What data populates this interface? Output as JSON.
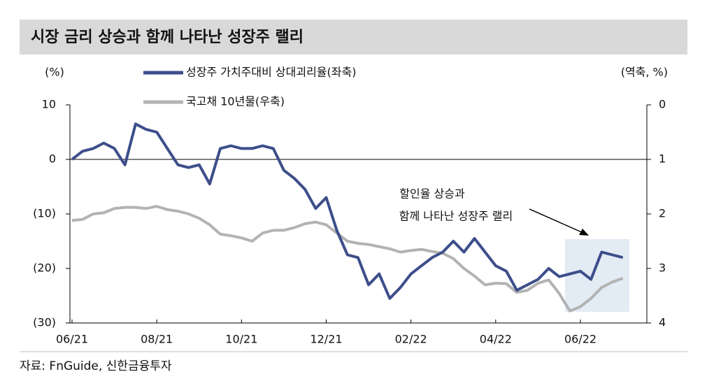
{
  "chart_data": {
    "type": "line",
    "title": "시장 금리 상승과 함께 나타난 성장주 랠리",
    "y_label": "(%)",
    "y2_label": "(역축, %)",
    "source": "자료: FnGuide, 신한금융투자",
    "annotation": [
      "할인율 상승과",
      "함께 나타난 성장주 랠리"
    ],
    "categories": [
      "06/21",
      null,
      null,
      null,
      null,
      null,
      null,
      null,
      "08/21",
      null,
      null,
      null,
      null,
      null,
      null,
      null,
      "10/21",
      null,
      null,
      null,
      null,
      null,
      null,
      null,
      "12/21",
      null,
      null,
      null,
      null,
      null,
      null,
      null,
      "02/22",
      null,
      null,
      null,
      null,
      null,
      null,
      null,
      "04/22",
      null,
      null,
      null,
      null,
      null,
      null,
      null,
      "06/22",
      null,
      null,
      null,
      null
    ],
    "series": [
      {
        "name": "성장주 가치주대비 상대괴리율(좌축)",
        "color": "#3d4e8a",
        "values": [
          0,
          1.5,
          2,
          3,
          2,
          -1,
          6.5,
          5.5,
          5,
          2,
          -1,
          -1.5,
          -1,
          -4.5,
          2,
          2.5,
          2,
          2,
          2.5,
          2,
          -2,
          -3.5,
          -5.5,
          -9,
          -7,
          -13,
          -17.5,
          -18,
          -23,
          -21,
          -25.5,
          -23.5,
          -21,
          -19.5,
          -18,
          -17,
          -15,
          -17,
          -14.5,
          -17,
          -19.5,
          -20.5,
          -24,
          -23,
          -22,
          -20,
          -21.5,
          -21,
          -20.5,
          -22,
          -17,
          -17.5,
          -18
        ]
      },
      {
        "name": "국고채 10년물(우축)",
        "color": "#b3b3b3",
        "axis": "y2",
        "values": [
          2.12,
          2.1,
          2.0,
          1.98,
          1.9,
          1.88,
          1.88,
          1.9,
          1.86,
          1.92,
          1.95,
          2.0,
          2.08,
          2.2,
          2.37,
          2.4,
          2.44,
          2.5,
          2.35,
          2.3,
          2.3,
          2.25,
          2.18,
          2.15,
          2.2,
          2.35,
          2.5,
          2.54,
          2.56,
          2.6,
          2.64,
          2.7,
          2.67,
          2.65,
          2.69,
          2.72,
          2.82,
          3.0,
          3.14,
          3.3,
          3.27,
          3.28,
          3.44,
          3.4,
          3.27,
          3.21,
          3.46,
          3.78,
          3.7,
          3.55,
          3.35,
          3.25,
          3.18
        ]
      }
    ],
    "ylim": [
      -30,
      10
    ],
    "yticks": [
      {
        "value": -30,
        "label": "(30)"
      },
      {
        "value": -20,
        "label": "(20)"
      },
      {
        "value": -10,
        "label": "(10)"
      },
      0,
      10
    ],
    "y2lim": [
      0,
      4
    ],
    "y2ticks": [
      0,
      1,
      2,
      3,
      4
    ],
    "y2_inverted": true
  }
}
